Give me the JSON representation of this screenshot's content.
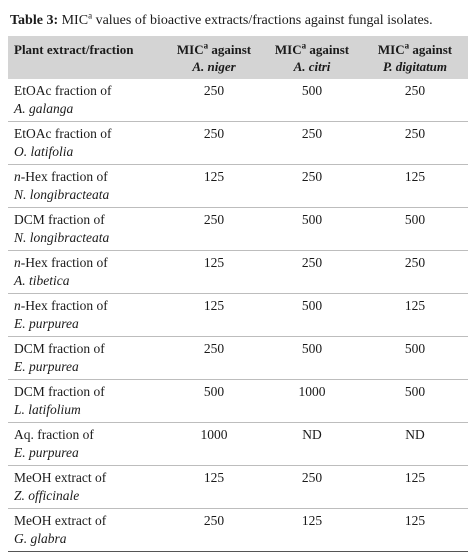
{
  "caption": {
    "label": "Table 3:",
    "text_before": "MIC",
    "sup": "a",
    "text_after": "values of bioactive extracts/fractions against fungal isolates."
  },
  "headers": [
    {
      "main": "Plant extract/fraction",
      "sup": "",
      "sub": ""
    },
    {
      "main": "MIC",
      "sup": "a",
      "after": "against",
      "sub": "A. niger"
    },
    {
      "main": "MIC",
      "sup": "a",
      "after": "against",
      "sub": "A. citri"
    },
    {
      "main": "MIC",
      "sup": "a",
      "after": "against",
      "sub": "P. digitatum"
    }
  ],
  "rows": [
    {
      "prefix": "",
      "fraction": "EtOAc fraction of",
      "species": "A. galanga",
      "niger": "250",
      "citri": "500",
      "digitatum": "250"
    },
    {
      "prefix": "",
      "fraction": "EtOAc fraction of",
      "species": "O. latifolia",
      "niger": "250",
      "citri": "250",
      "digitatum": "250"
    },
    {
      "prefix": "n",
      "fraction": "-Hex fraction of",
      "species": "N. longibracteata",
      "niger": "125",
      "citri": "250",
      "digitatum": "125"
    },
    {
      "prefix": "",
      "fraction": "DCM fraction of",
      "species": "N. longibracteata",
      "niger": "250",
      "citri": "500",
      "digitatum": "500"
    },
    {
      "prefix": "n",
      "fraction": "-Hex fraction of",
      "species": "A. tibetica",
      "niger": "125",
      "citri": "250",
      "digitatum": "250"
    },
    {
      "prefix": "n",
      "fraction": "-Hex fraction of",
      "species": "E. purpurea",
      "niger": "125",
      "citri": "500",
      "digitatum": "125"
    },
    {
      "prefix": "",
      "fraction": "DCM fraction of",
      "species": "E. purpurea",
      "niger": "250",
      "citri": "500",
      "digitatum": "500"
    },
    {
      "prefix": "",
      "fraction": "DCM fraction of",
      "species": "L. latifolium",
      "niger": "500",
      "citri": "1000",
      "digitatum": "500"
    },
    {
      "prefix": "",
      "fraction": "Aq. fraction of",
      "species": "E. purpurea",
      "niger": "1000",
      "citri": "ND",
      "digitatum": "ND"
    },
    {
      "prefix": "",
      "fraction": "MeOH extract of",
      "species": "Z. officinale",
      "niger": "125",
      "citri": "250",
      "digitatum": "125"
    },
    {
      "prefix": "",
      "fraction": "MeOH extract of",
      "species": "G. glabra",
      "niger": "250",
      "citri": "125",
      "digitatum": "125"
    }
  ]
}
